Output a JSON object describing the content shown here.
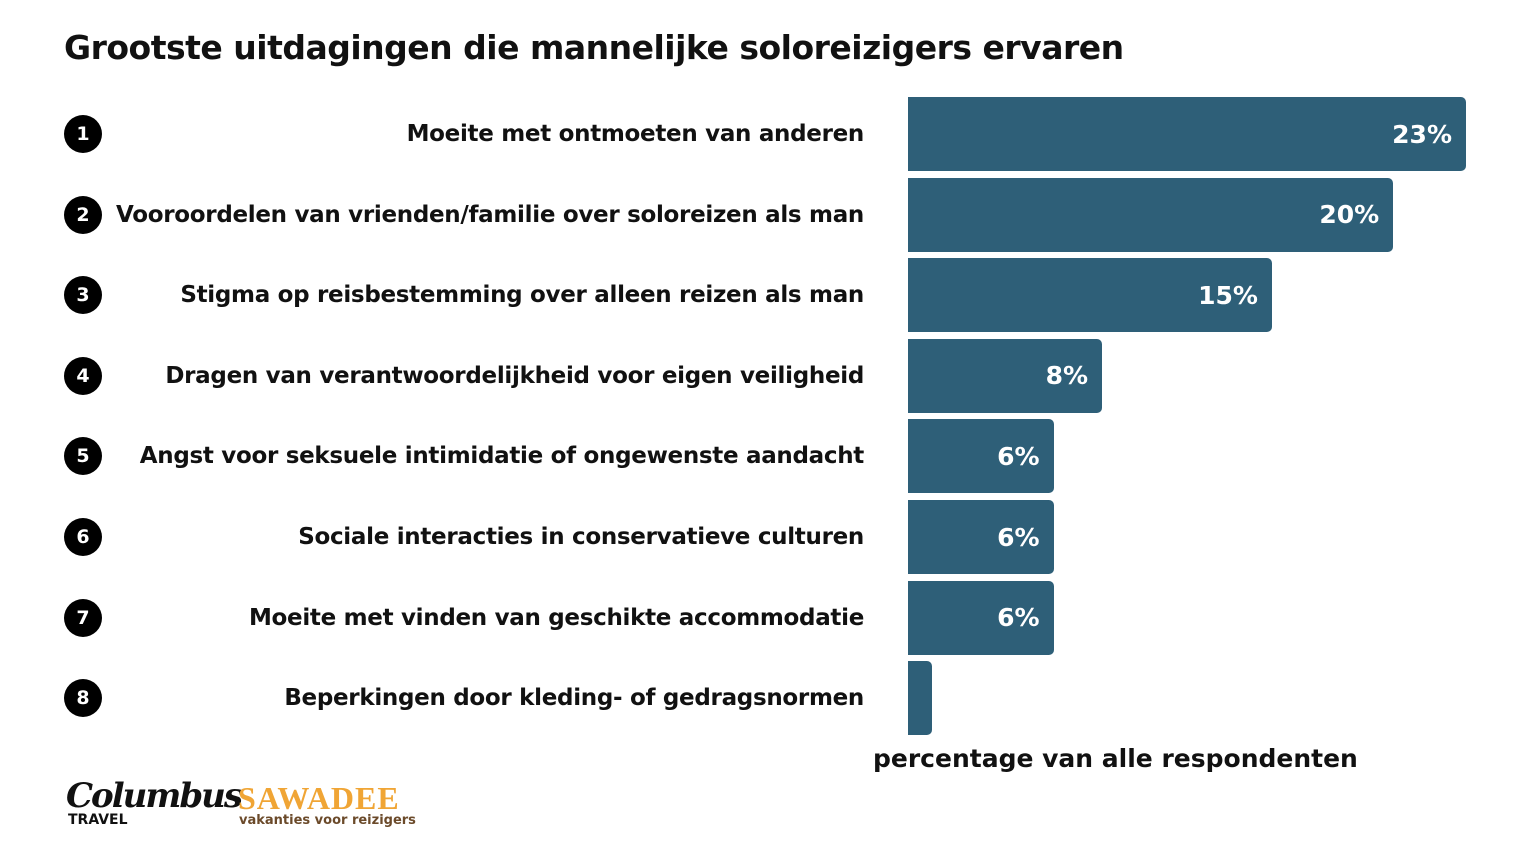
{
  "chart_data": {
    "type": "bar",
    "orientation": "horizontal",
    "title": "Grootste uitdagingen die mannelijke soloreizigers ervaren",
    "xlabel": "percentage van alle respondenten",
    "ylabel": "",
    "ranks": [
      "1",
      "2",
      "3",
      "4",
      "5",
      "6",
      "7",
      "8"
    ],
    "categories": [
      "Moeite met ontmoeten van anderen",
      "Vooroordelen van vrienden/familie over soloreizen als man",
      "Stigma op reisbestemming over alleen reizen als man",
      "Dragen van verantwoordelijkheid voor eigen veiligheid",
      "Angst voor seksuele intimidatie of ongewenste aandacht",
      "Sociale interacties in conservatieve culturen",
      "Moeite met vinden van geschikte accommodatie",
      "Beperkingen door kleding- of gedragsnormen"
    ],
    "values": [
      23,
      20,
      15,
      8,
      6,
      6,
      6,
      1
    ],
    "data_labels": [
      "23%",
      "20%",
      "15%",
      "8%",
      "6%",
      "6%",
      "6%",
      ""
    ],
    "xlim": [
      0,
      23
    ],
    "grid": false,
    "bar_color": "#2e5f78"
  },
  "logos": {
    "columbus": "Columbus",
    "columbus_sub": "TRAVEL",
    "sawadee": "SAWADEE",
    "sawadee_sub": "vakanties voor reizigers"
  }
}
